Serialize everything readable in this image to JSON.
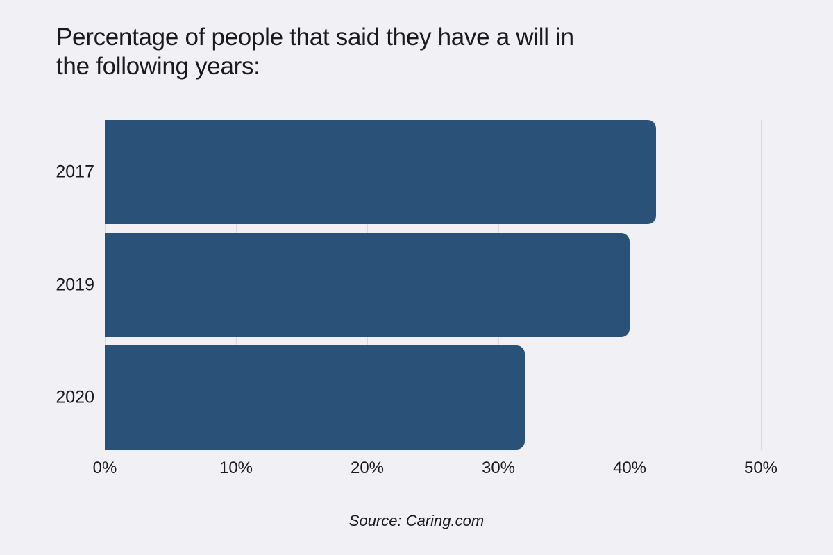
{
  "page": {
    "background": "#F1F0F4"
  },
  "chart_data": {
    "type": "bar",
    "orientation": "horizontal",
    "title": "Percentage of people that said they have a will in the following years:",
    "title_lines": [
      "Percentage of people that said they have a will in",
      "the following years:"
    ],
    "categories": [
      "2017",
      "2019",
      "2020"
    ],
    "values": [
      42,
      40,
      32
    ],
    "value_unit": "percent",
    "xlabel": "",
    "ylabel": "",
    "xlim": [
      0,
      50
    ],
    "x_ticks": [
      {
        "value": 0,
        "label": "0%"
      },
      {
        "value": 10,
        "label": "10%"
      },
      {
        "value": 20,
        "label": "20%"
      },
      {
        "value": 30,
        "label": "30%"
      },
      {
        "value": 40,
        "label": "40%"
      },
      {
        "value": 50,
        "label": "50%"
      }
    ],
    "grid": "vertical",
    "legend": "none",
    "source": "Source: Caring.com",
    "colors": {
      "bar": "#2A5278",
      "background": "#F1F0F4",
      "gridline": "#D9D8DE",
      "text": "#1A1A1E"
    }
  }
}
